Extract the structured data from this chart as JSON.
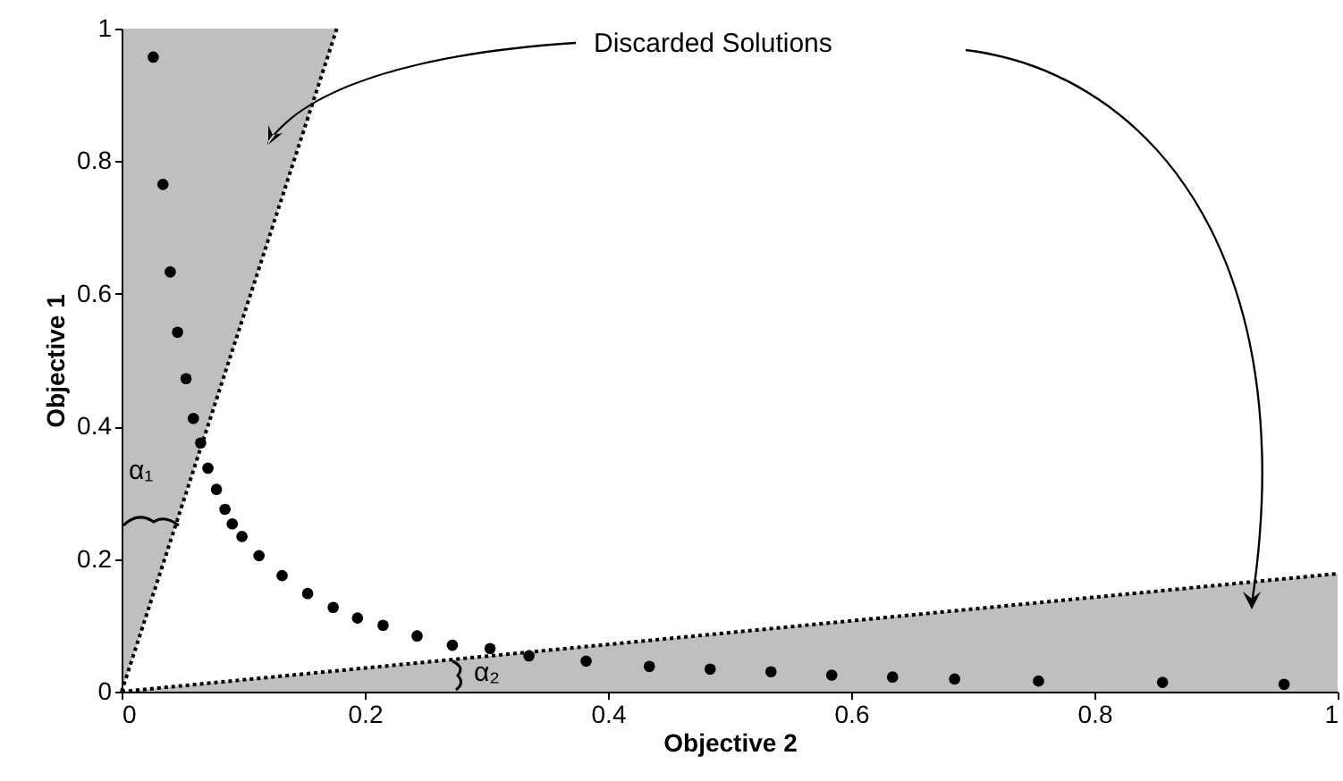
{
  "chart_data": {
    "type": "scatter",
    "xlabel": "Objective 2",
    "ylabel": "Objective 1",
    "xlim": [
      0,
      1
    ],
    "ylim": [
      0,
      1
    ],
    "xticks": [
      0,
      0.2,
      0.4,
      0.6,
      0.8,
      1
    ],
    "yticks": [
      0,
      0.2,
      0.4,
      0.6,
      0.8,
      1
    ],
    "series": [
      {
        "type": "line",
        "line_style": "dotted",
        "color": "#000000",
        "x": [
          0,
          0.177
        ],
        "values": [
          0,
          1
        ],
        "lower": [
          0,
          1
        ],
        "upper": [
          1,
          1
        ]
      },
      {
        "type": "line",
        "line_style": "dotted",
        "color": "#000000",
        "x": [
          0,
          1
        ],
        "values": [
          0,
          0.178
        ],
        "lower": [
          0,
          0
        ],
        "upper": [
          0,
          0.178
        ]
      },
      {
        "color": "#000000",
        "marker": "circle",
        "x": [
          0.026,
          0.034,
          0.04,
          0.046,
          0.053,
          0.059,
          0.065,
          0.071,
          0.078,
          0.085,
          0.091,
          0.099,
          0.113,
          0.132,
          0.153,
          0.174,
          0.194,
          0.215,
          0.243,
          0.272,
          0.303,
          0.335,
          0.382,
          0.434,
          0.484,
          0.534,
          0.584,
          0.634,
          0.685,
          0.754,
          0.856,
          0.956
        ],
        "values": [
          0.957,
          0.765,
          0.633,
          0.542,
          0.472,
          0.412,
          0.375,
          0.337,
          0.305,
          0.275,
          0.253,
          0.234,
          0.205,
          0.175,
          0.148,
          0.127,
          0.111,
          0.1,
          0.084,
          0.07,
          0.065,
          0.054,
          0.046,
          0.038,
          0.034,
          0.03,
          0.025,
          0.022,
          0.019,
          0.016,
          0.014,
          0.011
        ]
      }
    ],
    "annotations": [
      "Discarded Solutions",
      "α₁",
      "α₂"
    ]
  }
}
